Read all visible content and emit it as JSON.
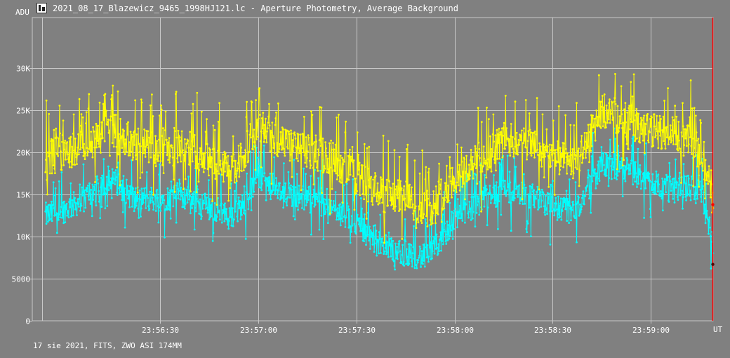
{
  "window": {
    "title": "2021_08_17_Blazewicz_9465_1998HJ121.lc - Aperture Photometry, Average Background",
    "icon": "lightcurve-app-icon"
  },
  "footer": {
    "info": "17 sie 2021, FITS, ZWO ASI 174MM"
  },
  "colors": {
    "background": "#808080",
    "grid": "#c8c8c8",
    "series_yellow": "#ffff00",
    "series_cyan": "#00ffff",
    "cursor": "#ff0000"
  },
  "chart_data": {
    "type": "line",
    "ylabel": "ADU",
    "xlabel": "UT",
    "ylim": [
      0,
      36000
    ],
    "y_ticks": [
      {
        "value": 0,
        "label": "0"
      },
      {
        "value": 5000,
        "label": "5000"
      },
      {
        "value": 10000,
        "label": "10K"
      },
      {
        "value": 15000,
        "label": "15K"
      },
      {
        "value": 20000,
        "label": "20K"
      },
      {
        "value": 25000,
        "label": "25K"
      },
      {
        "value": 30000,
        "label": "30K"
      }
    ],
    "x_ticks": [
      "23:56:30",
      "23:57:00",
      "23:57:30",
      "23:58:00",
      "23:58:30",
      "23:59:00"
    ],
    "grid": true,
    "series": [
      {
        "color": "#ffff00",
        "baseline": [
          [
            "23:55:55",
            19000
          ],
          [
            "23:56:00",
            20000
          ],
          [
            "23:56:07",
            20500
          ],
          [
            "23:56:15",
            23000
          ],
          [
            "23:56:22",
            21000
          ],
          [
            "23:56:30",
            20500
          ],
          [
            "23:56:37",
            21000
          ],
          [
            "23:56:45",
            19000
          ],
          [
            "23:56:52",
            17500
          ],
          [
            "23:56:56",
            20000
          ],
          [
            "23:57:00",
            23500
          ],
          [
            "23:57:07",
            21000
          ],
          [
            "23:57:15",
            20000
          ],
          [
            "23:57:22",
            19500
          ],
          [
            "23:57:30",
            17000
          ],
          [
            "23:57:37",
            15000
          ],
          [
            "23:57:45",
            14500
          ],
          [
            "23:57:52",
            13000
          ],
          [
            "23:58:00",
            17000
          ],
          [
            "23:58:07",
            19000
          ],
          [
            "23:58:15",
            21500
          ],
          [
            "23:58:22",
            21000
          ],
          [
            "23:58:30",
            19500
          ],
          [
            "23:58:37",
            18500
          ],
          [
            "23:58:45",
            25000
          ],
          [
            "23:58:52",
            24000
          ],
          [
            "23:59:00",
            22500
          ],
          [
            "23:59:07",
            22500
          ],
          [
            "23:59:15",
            20000
          ],
          [
            "23:59:19",
            13500
          ]
        ],
        "amplitude": 3800
      },
      {
        "color": "#00ffff",
        "baseline": [
          [
            "23:55:55",
            12500
          ],
          [
            "23:56:00",
            13000
          ],
          [
            "23:56:07",
            14500
          ],
          [
            "23:56:15",
            17000
          ],
          [
            "23:56:22",
            14500
          ],
          [
            "23:56:30",
            14500
          ],
          [
            "23:56:37",
            15000
          ],
          [
            "23:56:45",
            13500
          ],
          [
            "23:56:52",
            12500
          ],
          [
            "23:56:56",
            14000
          ],
          [
            "23:57:00",
            17000
          ],
          [
            "23:57:07",
            15000
          ],
          [
            "23:57:15",
            14500
          ],
          [
            "23:57:22",
            13500
          ],
          [
            "23:57:30",
            11500
          ],
          [
            "23:57:37",
            9000
          ],
          [
            "23:57:45",
            8000
          ],
          [
            "23:57:52",
            7500
          ],
          [
            "23:58:00",
            12000
          ],
          [
            "23:58:07",
            14000
          ],
          [
            "23:58:15",
            15500
          ],
          [
            "23:58:22",
            15000
          ],
          [
            "23:58:30",
            13500
          ],
          [
            "23:58:37",
            13000
          ],
          [
            "23:58:45",
            18500
          ],
          [
            "23:58:52",
            18000
          ],
          [
            "23:59:00",
            16500
          ],
          [
            "23:59:07",
            15500
          ],
          [
            "23:59:15",
            16000
          ],
          [
            "23:59:19",
            9000
          ]
        ],
        "amplitude": 2800
      }
    ],
    "cursor": {
      "x": "23:59:19"
    }
  }
}
